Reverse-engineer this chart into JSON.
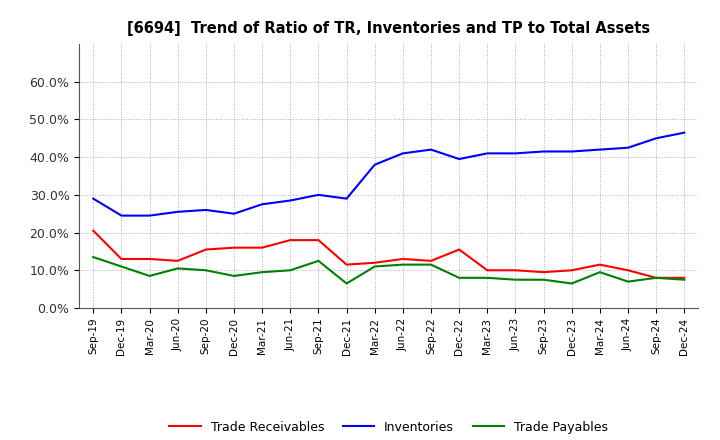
{
  "title": "[6694]  Trend of Ratio of TR, Inventories and TP to Total Assets",
  "x_labels": [
    "Sep-19",
    "Dec-19",
    "Mar-20",
    "Jun-20",
    "Sep-20",
    "Dec-20",
    "Mar-21",
    "Jun-21",
    "Sep-21",
    "Dec-21",
    "Mar-22",
    "Jun-22",
    "Sep-22",
    "Dec-22",
    "Mar-23",
    "Jun-23",
    "Sep-23",
    "Dec-23",
    "Mar-24",
    "Jun-24",
    "Sep-24",
    "Dec-24"
  ],
  "trade_receivables": [
    20.5,
    13.0,
    13.0,
    12.5,
    15.5,
    16.0,
    16.0,
    18.0,
    18.0,
    11.5,
    12.0,
    13.0,
    12.5,
    15.5,
    10.0,
    10.0,
    9.5,
    10.0,
    11.5,
    10.0,
    8.0,
    8.0
  ],
  "inventories": [
    29.0,
    24.5,
    24.5,
    25.5,
    26.0,
    25.0,
    27.5,
    28.5,
    30.0,
    29.0,
    38.0,
    41.0,
    42.0,
    39.5,
    41.0,
    41.0,
    41.5,
    41.5,
    42.0,
    42.5,
    45.0,
    46.5
  ],
  "trade_payables": [
    13.5,
    11.0,
    8.5,
    10.5,
    10.0,
    8.5,
    9.5,
    10.0,
    12.5,
    6.5,
    11.0,
    11.5,
    11.5,
    8.0,
    8.0,
    7.5,
    7.5,
    6.5,
    9.5,
    7.0,
    8.0,
    7.5
  ],
  "colors": {
    "trade_receivables": "#ff0000",
    "inventories": "#0000ff",
    "trade_payables": "#008000"
  },
  "ylim": [
    0,
    70
  ],
  "yticks": [
    0,
    10,
    20,
    30,
    40,
    50,
    60
  ],
  "background_color": "#ffffff",
  "grid_color": "#999999"
}
